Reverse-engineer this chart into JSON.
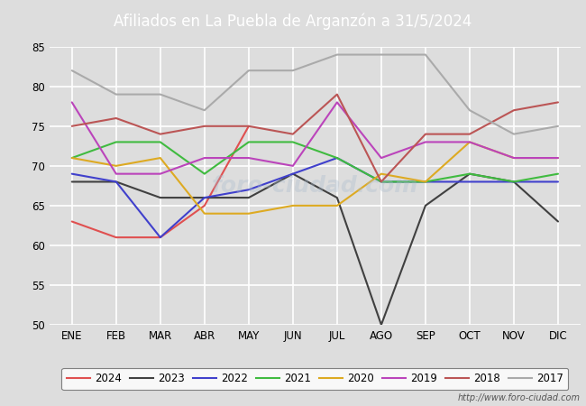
{
  "title": "Afiliados en La Puebla de Arganzón a 31/5/2024",
  "title_bg_color": "#4f81bd",
  "title_text_color": "white",
  "months": [
    "ENE",
    "FEB",
    "MAR",
    "ABR",
    "MAY",
    "JUN",
    "JUL",
    "AGO",
    "SEP",
    "OCT",
    "NOV",
    "DIC"
  ],
  "ylim": [
    50,
    85
  ],
  "yticks": [
    50,
    55,
    60,
    65,
    70,
    75,
    80,
    85
  ],
  "series": {
    "2024": {
      "color": "#e05050",
      "data": [
        63,
        61,
        61,
        65,
        75,
        null,
        null,
        null,
        null,
        null,
        null,
        null
      ]
    },
    "2023": {
      "color": "#404040",
      "data": [
        68,
        68,
        66,
        66,
        66,
        69,
        66,
        50,
        65,
        69,
        68,
        63
      ]
    },
    "2022": {
      "color": "#4040cc",
      "data": [
        69,
        68,
        61,
        66,
        67,
        69,
        71,
        68,
        68,
        68,
        68,
        68
      ]
    },
    "2021": {
      "color": "#40bb40",
      "data": [
        71,
        73,
        73,
        69,
        73,
        73,
        71,
        68,
        68,
        69,
        68,
        69
      ]
    },
    "2020": {
      "color": "#ddaa22",
      "data": [
        71,
        70,
        71,
        64,
        64,
        65,
        65,
        69,
        68,
        73,
        71,
        71
      ]
    },
    "2019": {
      "color": "#bb44bb",
      "data": [
        78,
        69,
        69,
        71,
        71,
        70,
        78,
        71,
        73,
        73,
        71,
        71
      ]
    },
    "2018": {
      "color": "#bb5555",
      "data": [
        75,
        76,
        74,
        75,
        75,
        74,
        79,
        68,
        74,
        74,
        77,
        78
      ]
    },
    "2017": {
      "color": "#aaaaaa",
      "data": [
        82,
        79,
        79,
        77,
        82,
        82,
        84,
        84,
        84,
        77,
        74,
        75
      ]
    }
  },
  "watermark_text": "foro-ciudad.com",
  "footer_url": "http://www.foro-ciudad.com",
  "bg_color": "#dddddd",
  "plot_bg_color": "#dddddd",
  "grid_color": "white",
  "legend_order": [
    "2024",
    "2023",
    "2022",
    "2021",
    "2020",
    "2019",
    "2018",
    "2017"
  ]
}
